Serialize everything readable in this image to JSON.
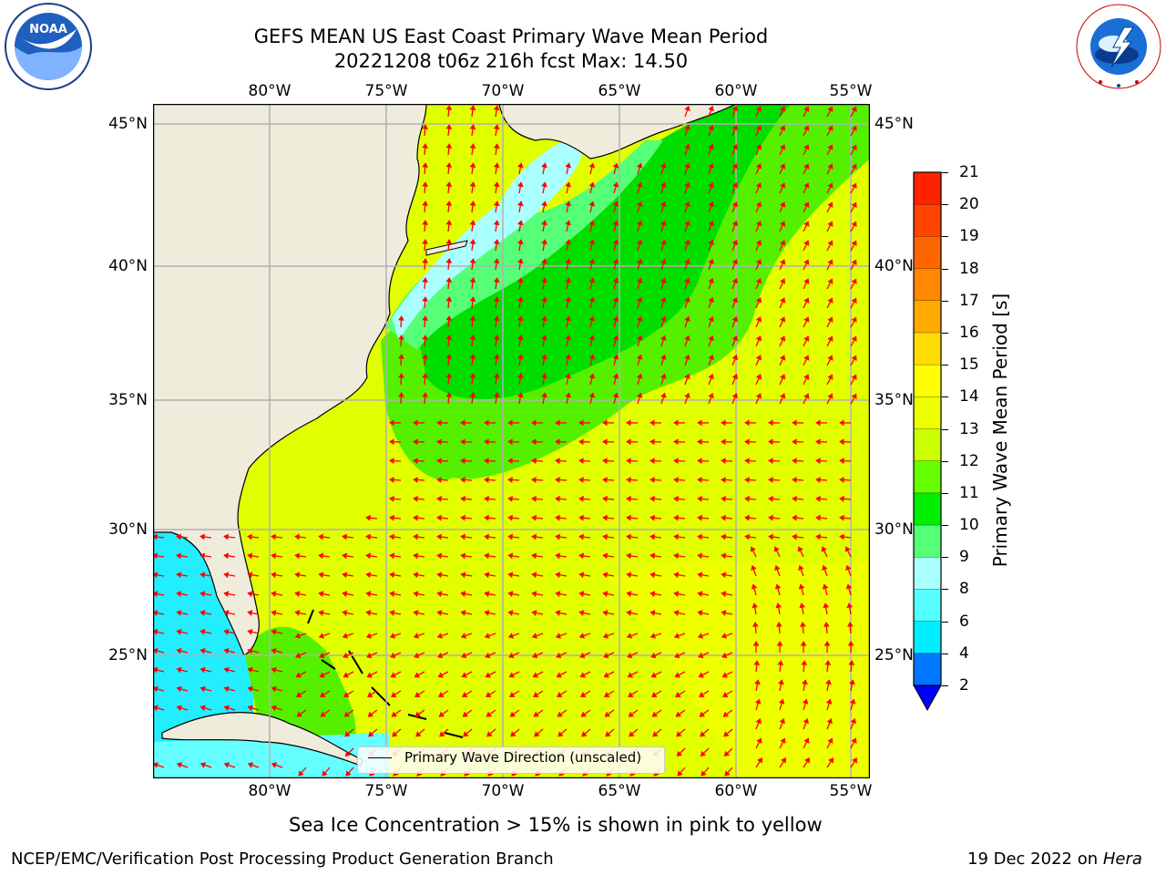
{
  "header": {
    "title_line1": "GEFS MEAN US East Coast Primary Wave Mean Period",
    "title_line2": "20221208 t06z 216h fcst   Max: 14.50"
  },
  "logos": {
    "left": {
      "name": "noaa-logo",
      "text": "NOAA"
    },
    "right": {
      "name": "nws-logo",
      "text": "NATIONAL WEATHER SERVICE"
    }
  },
  "map": {
    "lon_labels": [
      "80°W",
      "75°W",
      "70°W",
      "65°W",
      "60°W",
      "55°W"
    ],
    "lat_labels": [
      "45°N",
      "40°N",
      "35°N",
      "30°N",
      "25°N"
    ],
    "extent": {
      "lon": [
        -85,
        -54.5
      ],
      "lat": [
        20.5,
        46
      ]
    },
    "arrow_color": "#ff0000",
    "land_color": "#efecdc",
    "grid_color": "#b0b0b0",
    "legend": {
      "label": "Primary Wave Direction (unscaled)"
    }
  },
  "colorbar": {
    "label": "Primary Wave Mean Period [s]",
    "ticks": [
      "21",
      "20",
      "19",
      "18",
      "17",
      "16",
      "15",
      "14",
      "13",
      "12",
      "11",
      "10",
      "9",
      "8",
      "6",
      "4",
      "2"
    ],
    "colors": [
      "#ff0000",
      "#ff2200",
      "#ff4400",
      "#ff6600",
      "#ff8800",
      "#ffaa00",
      "#ffdd00",
      "#ffff00",
      "#eeff00",
      "#ccff00",
      "#66ff00",
      "#00ee00",
      "#55ff77",
      "#aaffff",
      "#55ffff",
      "#00eeff",
      "#0077ff"
    ],
    "extend_color": "#0000ff"
  },
  "notes": {
    "sea_ice": "Sea Ice Concentration > 15% is shown in pink to yellow"
  },
  "footer": {
    "left": "NCEP/EMC/Verification Post Processing Product Generation Branch",
    "right_prefix": "19 Dec 2022 on ",
    "right_host": "Hera"
  }
}
